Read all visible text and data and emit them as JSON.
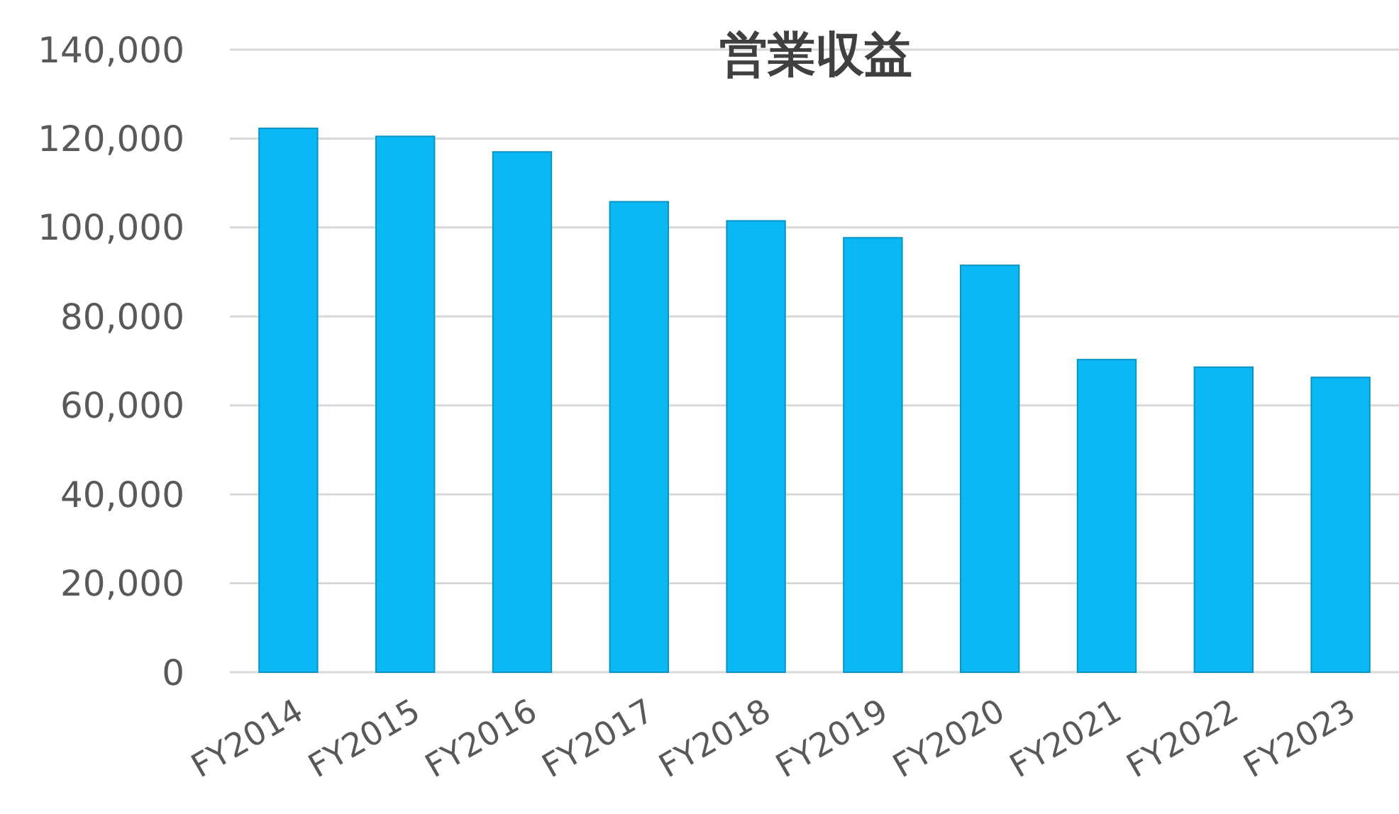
{
  "chart_data": {
    "type": "bar",
    "title": "営業収益",
    "categories": [
      "FY2014",
      "FY2015",
      "FY2016",
      "FY2017",
      "FY2018",
      "FY2019",
      "FY2020",
      "FY2021",
      "FY2022",
      "FY2023"
    ],
    "values": [
      122300,
      120500,
      117000,
      105800,
      101500,
      97700,
      91500,
      70300,
      68600,
      66300
    ],
    "color": "#0ab8f5",
    "ylim": [
      0,
      140000
    ],
    "yticks": [
      {
        "value": 0,
        "label": "0"
      },
      {
        "value": 20000,
        "label": "20,000"
      },
      {
        "value": 40000,
        "label": "40,000"
      },
      {
        "value": 60000,
        "label": "60,000"
      },
      {
        "value": 80000,
        "label": "80,000"
      },
      {
        "value": 100000,
        "label": "100,000"
      },
      {
        "value": 120000,
        "label": "120,000"
      },
      {
        "value": 140000,
        "label": "140,000"
      }
    ],
    "grid": "y"
  }
}
